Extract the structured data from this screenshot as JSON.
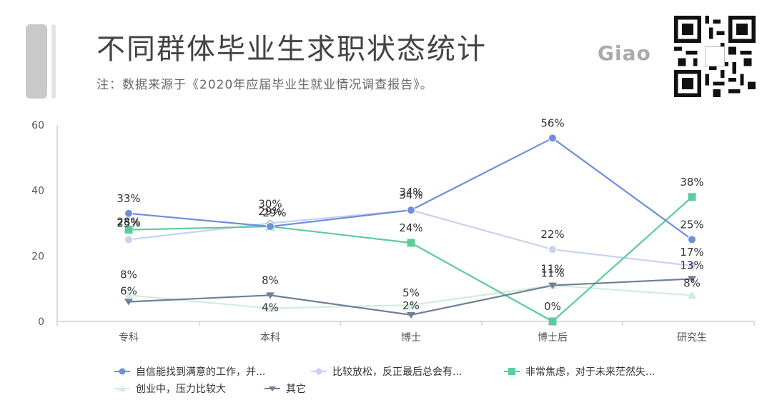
{
  "header": {
    "title": "不同群体毕业生求职状态统计",
    "subtitle": "注：数据来源于《2020年应届毕业生就业情况调查报告》。",
    "brand": "Giao"
  },
  "chart_data": {
    "type": "line",
    "categories": [
      "专科",
      "本科",
      "博士",
      "博士后",
      "研究生"
    ],
    "ylim": [
      0,
      60
    ],
    "yticks": [
      0,
      20,
      40,
      60
    ],
    "grid": false,
    "legend_position": "bottom",
    "series": [
      {
        "name": "自信能找到满意的工作，并...",
        "color": "#6f8fdc",
        "marker": "circle",
        "values": [
          33,
          29,
          34,
          56,
          25
        ]
      },
      {
        "name": "比较放松，反正最后总会有...",
        "color": "#c6d2ef",
        "marker": "circle",
        "values": [
          25,
          30,
          34,
          22,
          17
        ]
      },
      {
        "name": "非常焦虑，对于未来茫然失...",
        "color": "#5ccc9a",
        "marker": "square",
        "values": [
          28,
          29,
          24,
          0,
          38
        ]
      },
      {
        "name": "创业中，压力比较大",
        "color": "#d2ecdc",
        "marker": "triangle",
        "values": [
          8,
          4,
          5,
          11,
          8
        ]
      },
      {
        "name": "其它",
        "color": "#6f7f96",
        "marker": "arrow",
        "values": [
          6,
          8,
          2,
          11,
          13
        ]
      }
    ]
  }
}
